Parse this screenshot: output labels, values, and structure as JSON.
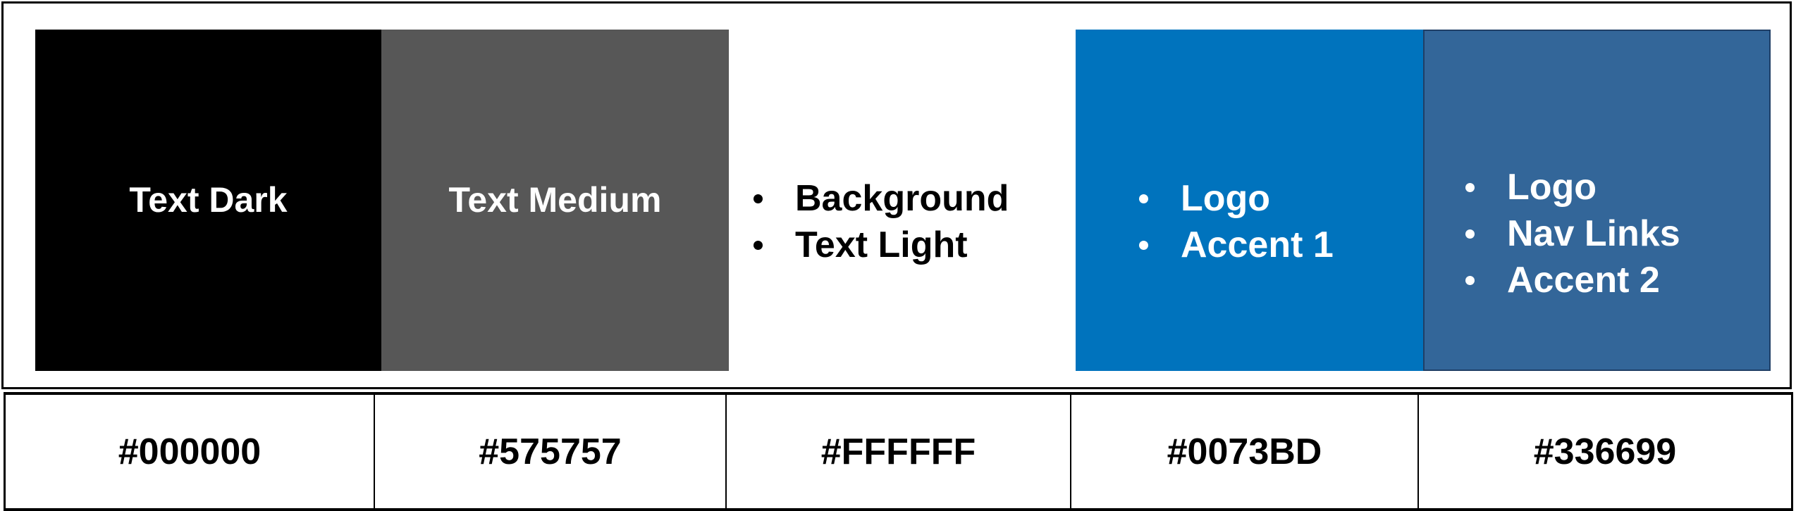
{
  "swatches": [
    {
      "color": "#000000",
      "label": "Text Dark",
      "bullets": []
    },
    {
      "color": "#575757",
      "label": "Text Medium",
      "bullets": []
    },
    {
      "color": "#FFFFFF",
      "label": "",
      "bullets": [
        "Background",
        "Text Light"
      ]
    },
    {
      "color": "#0073BD",
      "label": "",
      "bullets": [
        "Logo",
        "Accent 1"
      ]
    },
    {
      "color": "#336699",
      "label": "",
      "bullets": [
        "Logo",
        "Nav Links",
        "Accent 2"
      ]
    }
  ],
  "hex_codes": [
    "#000000",
    "#575757",
    "#FFFFFF",
    "#0073BD",
    "#336699"
  ]
}
